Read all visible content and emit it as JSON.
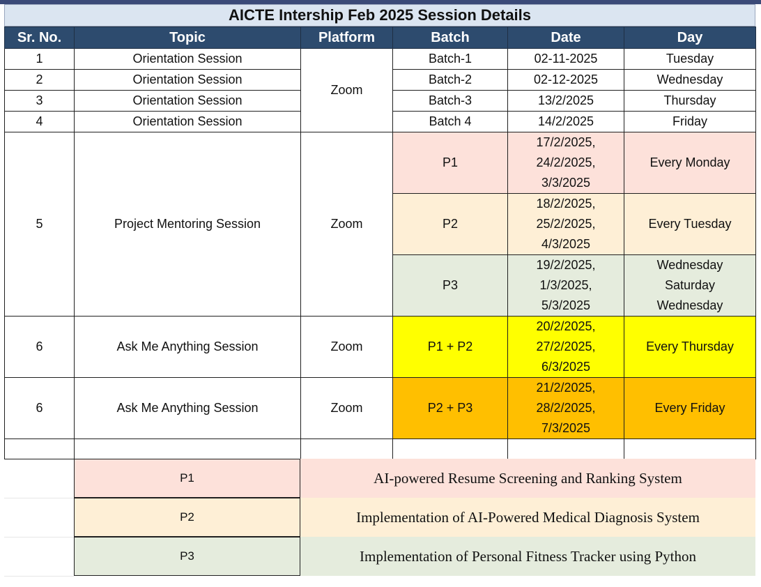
{
  "title": "AICTE Intership Feb 2025 Session Details",
  "headers": [
    "Sr. No.",
    "Topic",
    "Platform",
    "Batch",
    "Date",
    "Day"
  ],
  "orientation": {
    "platform": "Zoom",
    "rows": [
      {
        "sr": "1",
        "topic": "Orientation Session",
        "batch": "Batch-1",
        "date": "02-11-2025",
        "day": "Tuesday"
      },
      {
        "sr": "2",
        "topic": "Orientation Session",
        "batch": "Batch-2",
        "date": "02-12-2025",
        "day": "Wednesday"
      },
      {
        "sr": "3",
        "topic": "Orientation Session",
        "batch": "Batch-3",
        "date": "13/2/2025",
        "day": "Thursday"
      },
      {
        "sr": "4",
        "topic": "Orientation Session",
        "batch": "Batch 4",
        "date": "14/2/2025",
        "day": "Friday"
      }
    ]
  },
  "mentoring": {
    "sr": "5",
    "topic": "Project Mentoring Session",
    "platform": "Zoom",
    "groups": [
      {
        "batch": "P1",
        "dates": [
          "17/2/2025,",
          "24/2/2025,",
          "3/3/2025"
        ],
        "day": [
          "Every Monday"
        ]
      },
      {
        "batch": "P2",
        "dates": [
          "18/2/2025,",
          "25/2/2025,",
          "4/3/2025"
        ],
        "day": [
          "Every Tuesday"
        ]
      },
      {
        "batch": "P3",
        "dates": [
          "19/2/2025,",
          "1/3/2025,",
          "5/3/2025"
        ],
        "day": [
          "Wednesday",
          "Saturday",
          "Wednesday"
        ]
      }
    ]
  },
  "ama": [
    {
      "sr": "6",
      "topic": "Ask Me Anything Session",
      "platform": "Zoom",
      "batch": "P1 + P2",
      "dates": [
        "20/2/2025,",
        "27/2/2025,",
        "6/3/2025"
      ],
      "day": "Every Thursday"
    },
    {
      "sr": "6",
      "topic": "Ask Me Anything Session",
      "platform": "Zoom",
      "batch": "P2 + P3",
      "dates": [
        "21/2/2025,",
        "28/2/2025,",
        "7/3/2025"
      ],
      "day": "Every Friday"
    }
  ],
  "legend": [
    {
      "key": "P1",
      "value": "AI-powered Resume Screening and Ranking System"
    },
    {
      "key": "P2",
      "value": "Implementation of AI-Powered Medical Diagnosis System"
    },
    {
      "key": "P3",
      "value": "Implementation of Personal Fitness Tracker using Python"
    }
  ],
  "colors": {
    "header_bg": "#2d4b6e",
    "title_bg": "#dbe5f1",
    "p1": "#fde1da",
    "p2": "#feefd6",
    "p3": "#e5ecdd",
    "p1p2": "#ffff00",
    "p2p3": "#ffbf00"
  }
}
